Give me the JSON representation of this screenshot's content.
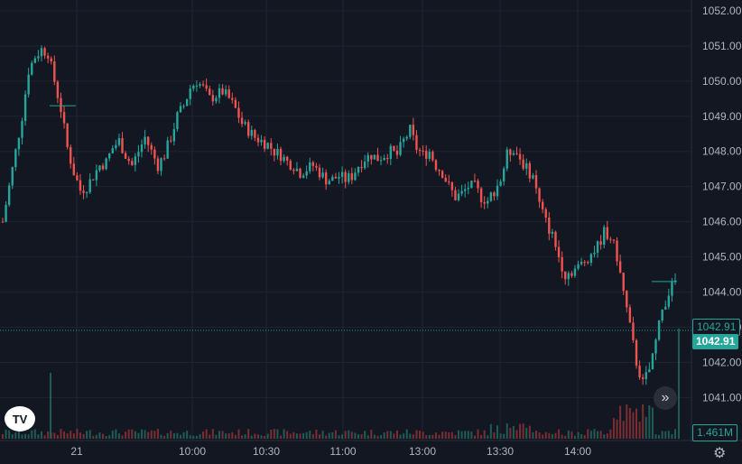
{
  "logo_text": "TV",
  "scroll_icon": "chevron-double-right-icon",
  "settings_icon": "gear-icon",
  "last_price_label": "1042.91",
  "last_price_label_outline": "1042.91",
  "volume_label": "1.461M",
  "colors": {
    "background": "#131722",
    "grid": "#1F2433",
    "up": "#26A69A",
    "down": "#EF5350",
    "volume_up": "#1E5C55",
    "volume_down": "#7A2E33"
  },
  "chart_data": {
    "type": "candlestick",
    "x_tick_labels": [
      "21",
      "10:00",
      "10:30",
      "11:00",
      "13:00",
      "13:30",
      "14:00"
    ],
    "y_tick_labels": [
      "1052.00",
      "1051.00",
      "1050.00",
      "1049.00",
      "1048.00",
      "1047.00",
      "1046.00",
      "1045.00",
      "1044.00",
      "1043.00",
      "1042.00",
      "1041.00"
    ],
    "ylim": [
      1040.6,
      1052.1
    ],
    "last_price": 1042.91,
    "grid": true,
    "close_path": [
      [
        0,
        1046.0
      ],
      [
        2,
        1047.0
      ],
      [
        4,
        1048.0
      ],
      [
        6,
        1049.0
      ],
      [
        8,
        1050.3
      ],
      [
        10,
        1050.7
      ],
      [
        12,
        1050.9
      ],
      [
        14,
        1050.8
      ],
      [
        16,
        1050.0
      ],
      [
        18,
        1049.2
      ],
      [
        20,
        1048.1
      ],
      [
        22,
        1047.4
      ],
      [
        24,
        1046.9
      ],
      [
        26,
        1047.0
      ],
      [
        28,
        1047.3
      ],
      [
        30,
        1047.6
      ],
      [
        32,
        1047.7
      ],
      [
        34,
        1048.1
      ],
      [
        36,
        1048.3
      ],
      [
        38,
        1047.9
      ],
      [
        40,
        1047.6
      ],
      [
        42,
        1048.0
      ],
      [
        44,
        1048.4
      ],
      [
        46,
        1048.0
      ],
      [
        48,
        1047.6
      ],
      [
        50,
        1047.9
      ],
      [
        52,
        1048.4
      ],
      [
        54,
        1049.0
      ],
      [
        56,
        1049.3
      ],
      [
        58,
        1049.8
      ],
      [
        60,
        1050.0
      ],
      [
        62,
        1049.8
      ],
      [
        64,
        1049.5
      ],
      [
        66,
        1049.6
      ],
      [
        68,
        1049.7
      ],
      [
        70,
        1049.5
      ],
      [
        72,
        1049.2
      ],
      [
        74,
        1048.8
      ],
      [
        76,
        1048.6
      ],
      [
        78,
        1048.4
      ],
      [
        80,
        1048.3
      ],
      [
        82,
        1048.2
      ],
      [
        84,
        1048.0
      ],
      [
        86,
        1047.9
      ],
      [
        88,
        1047.7
      ],
      [
        90,
        1047.6
      ],
      [
        92,
        1047.4
      ],
      [
        94,
        1047.5
      ],
      [
        96,
        1047.6
      ],
      [
        98,
        1047.4
      ],
      [
        100,
        1047.2
      ],
      [
        102,
        1047.2
      ],
      [
        104,
        1047.3
      ],
      [
        106,
        1047.2
      ],
      [
        108,
        1047.3
      ],
      [
        110,
        1047.6
      ],
      [
        112,
        1047.8
      ],
      [
        114,
        1047.9
      ],
      [
        116,
        1047.8
      ],
      [
        118,
        1047.9
      ],
      [
        120,
        1048.0
      ],
      [
        122,
        1047.9
      ],
      [
        124,
        1048.3
      ],
      [
        126,
        1048.6
      ],
      [
        128,
        1048.1
      ],
      [
        130,
        1047.9
      ],
      [
        132,
        1048.0
      ],
      [
        134,
        1047.6
      ],
      [
        136,
        1047.4
      ],
      [
        138,
        1047.0
      ],
      [
        140,
        1046.7
      ],
      [
        142,
        1046.8
      ],
      [
        144,
        1047.0
      ],
      [
        146,
        1047.0
      ],
      [
        148,
        1046.7
      ],
      [
        150,
        1046.6
      ],
      [
        152,
        1046.9
      ],
      [
        154,
        1047.2
      ],
      [
        156,
        1047.9
      ],
      [
        158,
        1048.1
      ],
      [
        160,
        1047.8
      ],
      [
        162,
        1047.5
      ],
      [
        164,
        1047.3
      ],
      [
        166,
        1046.5
      ],
      [
        168,
        1046.0
      ],
      [
        170,
        1045.6
      ],
      [
        172,
        1045.0
      ],
      [
        174,
        1044.5
      ],
      [
        176,
        1044.6
      ],
      [
        178,
        1044.7
      ],
      [
        180,
        1044.9
      ],
      [
        182,
        1045.1
      ],
      [
        184,
        1045.3
      ],
      [
        186,
        1045.7
      ],
      [
        188,
        1045.6
      ],
      [
        190,
        1045.0
      ],
      [
        192,
        1044.0
      ],
      [
        194,
        1043.0
      ],
      [
        196,
        1042.0
      ],
      [
        198,
        1041.4
      ],
      [
        200,
        1041.8
      ],
      [
        202,
        1042.6
      ],
      [
        204,
        1043.5
      ],
      [
        206,
        1044.0
      ],
      [
        208,
        1044.3
      ]
    ]
  }
}
